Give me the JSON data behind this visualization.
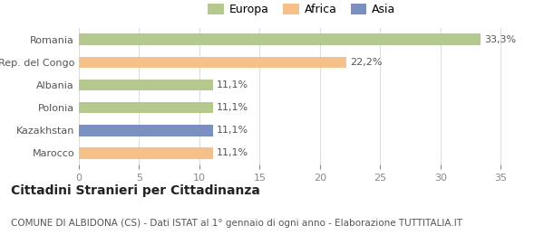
{
  "categories": [
    "Romania",
    "Rep. del Congo",
    "Albania",
    "Polonia",
    "Kazakhstan",
    "Marocco"
  ],
  "values": [
    33.3,
    22.2,
    11.1,
    11.1,
    11.1,
    11.1
  ],
  "labels": [
    "33,3%",
    "22,2%",
    "11,1%",
    "11,1%",
    "11,1%",
    "11,1%"
  ],
  "colors": [
    "#b5c98e",
    "#f5c08a",
    "#b5c98e",
    "#b5c98e",
    "#7b8fc0",
    "#f5c08a"
  ],
  "legend_entries": [
    "Europa",
    "Africa",
    "Asia"
  ],
  "legend_colors": [
    "#b5c98e",
    "#f5c08a",
    "#7b8fc0"
  ],
  "xlim": [
    0,
    37
  ],
  "xticks": [
    0,
    5,
    10,
    15,
    20,
    25,
    30,
    35
  ],
  "title_bold": "Cittadini Stranieri per Cittadinanza",
  "subtitle": "COMUNE DI ALBIDONA (CS) - Dati ISTAT al 1° gennaio di ogni anno - Elaborazione TUTTITALIA.IT",
  "bg_color": "#ffffff",
  "bar_height": 0.5,
  "title_fontsize": 10,
  "subtitle_fontsize": 7.5,
  "label_fontsize": 8,
  "tick_fontsize": 8,
  "legend_fontsize": 9
}
